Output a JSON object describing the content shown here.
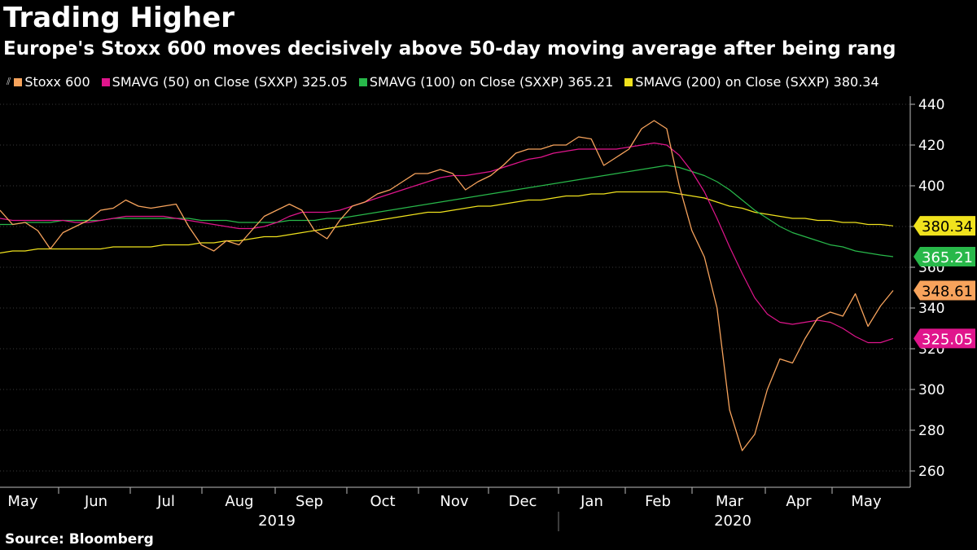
{
  "header": {
    "title": "Trading Higher",
    "subtitle": "Europe's Stoxx 600 moves decisively above 50-day moving average after being rang"
  },
  "legend": {
    "items": [
      {
        "label": "Stoxx 600",
        "color": "#f7a35c"
      },
      {
        "label": "SMAVG (50)  on Close (SXXP) 325.05",
        "color": "#e0158c"
      },
      {
        "label": "SMAVG (100)  on Close (SXXP) 365.21",
        "color": "#28b84a"
      },
      {
        "label": "SMAVG (200)  on Close (SXXP) 380.34",
        "color": "#f0e21d"
      }
    ]
  },
  "footer": {
    "source": "Source: Bloomberg"
  },
  "chart_data": {
    "type": "line",
    "title": "Trading Higher",
    "xlabel": "",
    "ylabel": "",
    "ylim": [
      252,
      444
    ],
    "y_ticks": [
      260,
      280,
      300,
      320,
      340,
      360,
      380,
      400,
      420,
      440
    ],
    "x_months": [
      "May",
      "Jun",
      "Jul",
      "Aug",
      "Sep",
      "Oct",
      "Nov",
      "Dec",
      "Jan",
      "Feb",
      "Mar",
      "Apr",
      "May"
    ],
    "x_years": [
      "2019",
      "2020"
    ],
    "x": [
      0,
      4,
      8,
      12,
      16,
      20,
      24,
      28,
      32,
      36,
      40,
      44,
      48,
      52,
      56,
      60,
      64,
      68,
      72,
      76,
      80,
      84,
      88,
      92,
      96,
      100,
      104,
      108,
      112,
      116,
      120,
      124,
      128,
      132,
      136,
      140,
      144,
      148,
      152,
      156,
      160,
      164,
      168,
      172,
      176,
      180,
      184,
      188,
      192,
      196,
      200,
      204,
      208,
      212,
      216,
      220,
      224,
      228,
      232,
      236,
      240,
      244,
      248,
      252,
      256,
      260,
      264,
      268,
      272,
      276,
      280,
      284
    ],
    "series": [
      {
        "name": "Stoxx 600",
        "color": "#f7a35c",
        "last_value": "348.61",
        "values": [
          388,
          381,
          382,
          378,
          369,
          377,
          380,
          383,
          388,
          389,
          393,
          390,
          389,
          390,
          391,
          380,
          371,
          368,
          373,
          371,
          378,
          385,
          388,
          391,
          388,
          378,
          374,
          383,
          390,
          392,
          396,
          398,
          402,
          406,
          406,
          408,
          406,
          398,
          402,
          405,
          410,
          416,
          418,
          418,
          420,
          420,
          424,
          423,
          410,
          414,
          418,
          428,
          432,
          428,
          400,
          378,
          365,
          340,
          290,
          270,
          278,
          300,
          315,
          313,
          325,
          335,
          338,
          336,
          347,
          331,
          341,
          348.61
        ]
      },
      {
        "name": "SMAVG (50)",
        "color": "#e0158c",
        "last_value": "325.05",
        "values": [
          384,
          383,
          383,
          383,
          383,
          383,
          382,
          382,
          383,
          384,
          385,
          385,
          385,
          385,
          384,
          383,
          382,
          381,
          380,
          379,
          379,
          380,
          382,
          385,
          387,
          387,
          387,
          388,
          390,
          392,
          394,
          396,
          398,
          400,
          402,
          404,
          405,
          405,
          406,
          407,
          409,
          411,
          413,
          414,
          416,
          417,
          418,
          418,
          418,
          418,
          419,
          420,
          421,
          420,
          415,
          407,
          397,
          384,
          370,
          357,
          345,
          337,
          333,
          332,
          333,
          334,
          333,
          330,
          326,
          323,
          323,
          325.05
        ]
      },
      {
        "name": "SMAVG (100)",
        "color": "#28b84a",
        "last_value": "365.21",
        "values": [
          381,
          381,
          382,
          382,
          382,
          383,
          383,
          383,
          383,
          384,
          384,
          384,
          384,
          384,
          384,
          384,
          383,
          383,
          383,
          382,
          382,
          382,
          382,
          383,
          383,
          383,
          384,
          384,
          385,
          386,
          387,
          388,
          389,
          390,
          391,
          392,
          393,
          394,
          395,
          396,
          397,
          398,
          399,
          400,
          401,
          402,
          403,
          404,
          405,
          406,
          407,
          408,
          409,
          410,
          409,
          407,
          405,
          402,
          398,
          393,
          388,
          384,
          380,
          377,
          375,
          373,
          371,
          370,
          368,
          367,
          366,
          365.21
        ]
      },
      {
        "name": "SMAVG (200)",
        "color": "#f0e21d",
        "last_value": "380.34",
        "values": [
          367,
          368,
          368,
          369,
          369,
          369,
          369,
          369,
          369,
          370,
          370,
          370,
          370,
          371,
          371,
          371,
          372,
          372,
          373,
          373,
          374,
          375,
          375,
          376,
          377,
          378,
          379,
          380,
          381,
          382,
          383,
          384,
          385,
          386,
          387,
          387,
          388,
          389,
          390,
          390,
          391,
          392,
          393,
          393,
          394,
          395,
          395,
          396,
          396,
          397,
          397,
          397,
          397,
          397,
          396,
          395,
          394,
          392,
          390,
          389,
          387,
          386,
          385,
          384,
          384,
          383,
          383,
          382,
          382,
          381,
          381,
          380.34
        ]
      }
    ]
  }
}
